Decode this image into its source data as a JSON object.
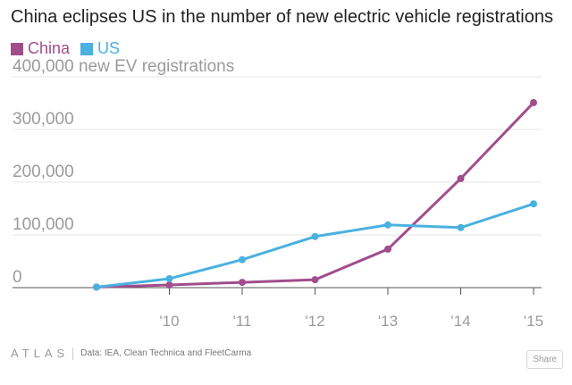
{
  "chart_data": {
    "type": "line",
    "title": "China eclipses US in the number of new electric vehicle registrations",
    "ylabel": "new EV registrations",
    "ylim": [
      0,
      400000
    ],
    "yticks": [
      0,
      100000,
      200000,
      300000,
      400000
    ],
    "ytick_labels": [
      "0",
      "100,000",
      "200,000",
      "300,000",
      "400,000"
    ],
    "categories": [
      "2009",
      "2010",
      "2011",
      "2012",
      "2013",
      "2014",
      "2015"
    ],
    "xtick_labels": [
      "",
      "'10",
      "'11",
      "'12",
      "'13",
      "'14",
      "'15"
    ],
    "grid": true,
    "legend_position": "top-left",
    "series": [
      {
        "name": "China",
        "color": "#a14d8c",
        "values": [
          1000,
          5000,
          10000,
          15000,
          73000,
          207000,
          351000
        ]
      },
      {
        "name": "US",
        "color": "#4ab1e0",
        "values": [
          1000,
          17000,
          53000,
          97000,
          119000,
          114000,
          159000
        ]
      }
    ]
  },
  "footer": {
    "logo": "ATLAS",
    "source": "Data: IEA, Clean Technica and FleetCarma",
    "share_label": "Share"
  }
}
